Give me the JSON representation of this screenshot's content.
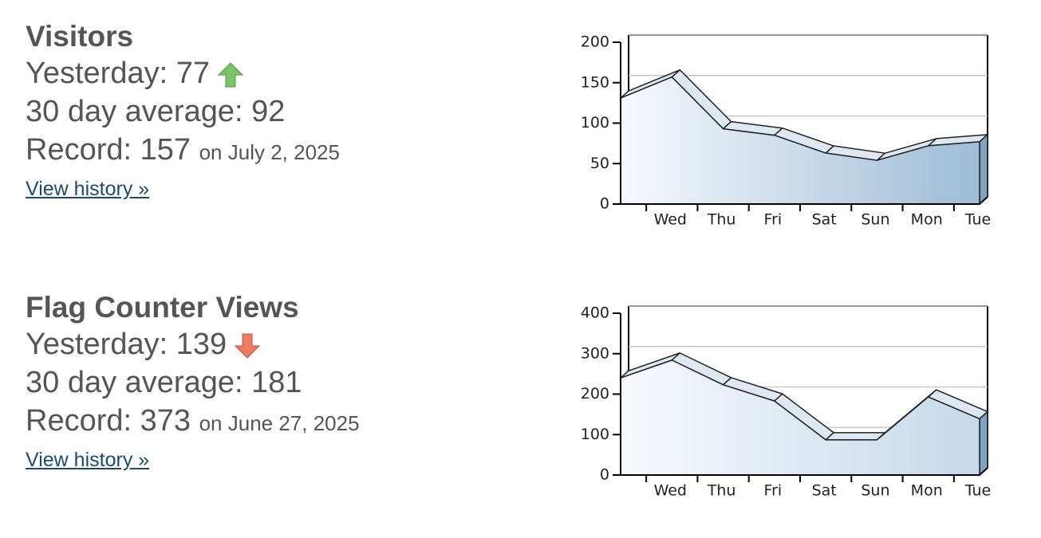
{
  "panels": [
    {
      "title": "Visitors",
      "yesterday_label": "Yesterday:",
      "yesterday": 77,
      "average_label": "30 day average:",
      "average": 92,
      "record_label": "Record:",
      "record": 157,
      "record_date": "on July 2, 2025",
      "link": "View history »"
    },
    {
      "title": "Flag Counter Views",
      "yesterday_label": "Yesterday:",
      "yesterday": 139,
      "average_label": "30 day average:",
      "average": 181,
      "record_label": "Record:",
      "record": 373,
      "record_date": "on June 27, 2025",
      "link": "View history »"
    }
  ],
  "chart_data": [
    {
      "type": "area",
      "categories": [
        null,
        "Wed",
        "Thu",
        "Fri",
        "Sat",
        "Sun",
        "Mon",
        "Tue"
      ],
      "series": [
        {
          "color": "#9dbcd6",
          "values": [
            131,
            157,
            93,
            85,
            63,
            54,
            72,
            77
          ]
        }
      ],
      "ylim": [
        0,
        200
      ],
      "yticks": [
        0,
        50,
        100,
        150,
        200
      ],
      "grid": true
    },
    {
      "type": "area",
      "categories": [
        null,
        "Wed",
        "Thu",
        "Fri",
        "Sat",
        "Sun",
        "Mon",
        "Tue"
      ],
      "series": [
        {
          "color": "#c6d9ea",
          "values": [
            240,
            284,
            223,
            183,
            87,
            87,
            193,
            139
          ]
        }
      ],
      "ylim": [
        0,
        400
      ],
      "yticks": [
        0,
        100,
        200,
        300,
        400
      ],
      "grid": true
    }
  ]
}
